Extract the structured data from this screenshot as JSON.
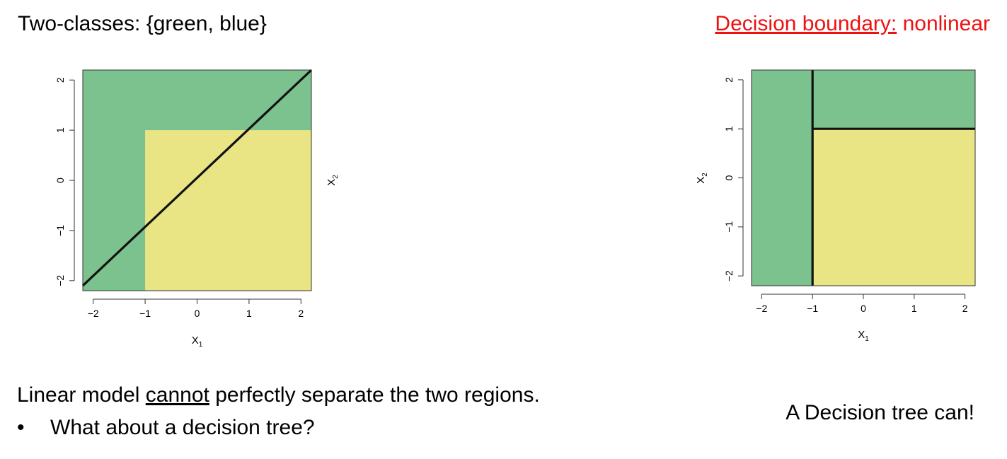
{
  "slide": {
    "title_left": "Two-classes: {green, blue}",
    "title_right_underlined": "Decision boundary:",
    "title_right_rest": " nonlinear",
    "bottom_line1_pre": "Linear model ",
    "bottom_line1_underlined": "cannot",
    "bottom_line1_post": " perfectly separate the two regions.",
    "bottom_bullet_symbol": "•",
    "bottom_bullet_text": "What about a decision tree?",
    "right_note": "A Decision tree can!"
  },
  "colors": {
    "green_region": "#7cc28e",
    "yellow_region": "#e9e584",
    "boundary": "#111111",
    "title_right": "#ee1111"
  },
  "chart_data": [
    {
      "type": "area",
      "xlabel_main": "X",
      "xlabel_sub": "1",
      "ylabel_main": "X",
      "ylabel_sub": "2",
      "xlim": [
        -2.2,
        2.2
      ],
      "ylim": [
        -2.2,
        2.2
      ],
      "xticks": [
        -2,
        -1,
        0,
        1,
        2
      ],
      "yticks": [
        -2,
        -1,
        0,
        1,
        2
      ],
      "xtick_labels": [
        "−2",
        "−1",
        "0",
        "1",
        "2"
      ],
      "ytick_labels": [
        "−2",
        "−1",
        "0",
        "1",
        "2"
      ],
      "regions": [
        {
          "class": "green",
          "x": [
            -2.2,
            2.2
          ],
          "y": [
            -2.2,
            2.2
          ]
        },
        {
          "class": "yellow",
          "x": [
            -1,
            2.2
          ],
          "y": [
            -2.2,
            1
          ]
        }
      ],
      "boundary": {
        "kind": "linear",
        "points": [
          [
            -2.2,
            -2.1
          ],
          [
            2.2,
            2.2
          ]
        ]
      }
    },
    {
      "type": "area",
      "xlabel_main": "X",
      "xlabel_sub": "1",
      "ylabel_main": "X",
      "ylabel_sub": "2",
      "xlim": [
        -2.2,
        2.2
      ],
      "ylim": [
        -2.2,
        2.2
      ],
      "xticks": [
        -2,
        -1,
        0,
        1,
        2
      ],
      "yticks": [
        -2,
        -1,
        0,
        1,
        2
      ],
      "xtick_labels": [
        "−2",
        "−1",
        "0",
        "1",
        "2"
      ],
      "ytick_labels": [
        "−2",
        "−1",
        "0",
        "1",
        "2"
      ],
      "regions": [
        {
          "class": "green",
          "x": [
            -2.2,
            2.2
          ],
          "y": [
            -2.2,
            2.2
          ]
        },
        {
          "class": "yellow",
          "x": [
            -1,
            2.2
          ],
          "y": [
            -2.2,
            1
          ]
        }
      ],
      "boundary": {
        "kind": "tree",
        "segments": [
          [
            [
              -1,
              -2.2
            ],
            [
              -1,
              2.2
            ]
          ],
          [
            [
              -1,
              1
            ],
            [
              2.2,
              1
            ]
          ]
        ]
      }
    }
  ]
}
